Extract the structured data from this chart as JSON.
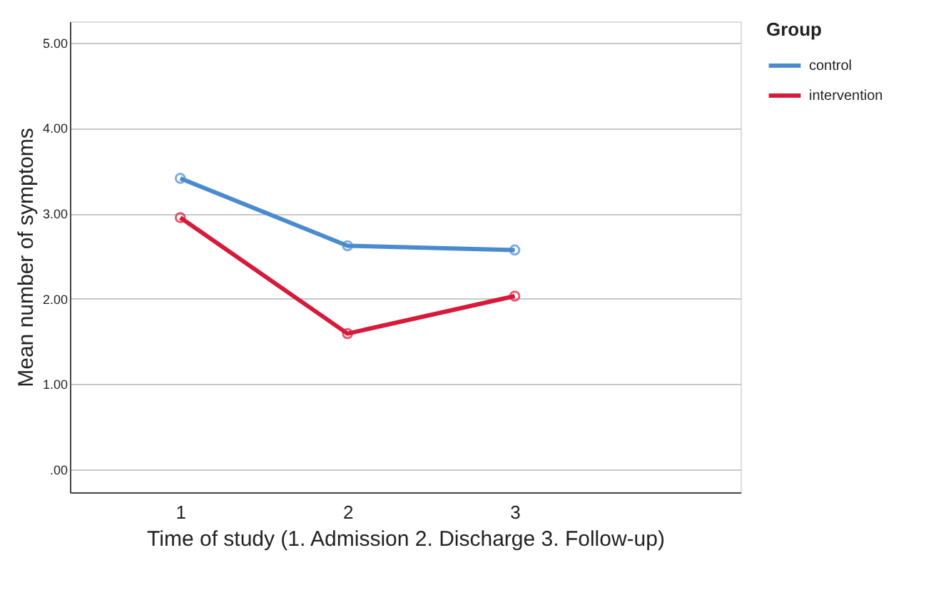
{
  "chart_data": {
    "type": "line",
    "xlabel": "Time of study (1. Admission 2. Discharge 3. Follow-up)",
    "ylabel": "Mean number of symptoms",
    "legend_title": "Group",
    "categories": [
      "1",
      "2",
      "3"
    ],
    "series": [
      {
        "name": "control",
        "color": "#4a8bd0",
        "values": [
          3.41,
          2.62,
          2.57
        ]
      },
      {
        "name": "intervention",
        "color": "#d7193a",
        "values": [
          2.95,
          1.59,
          2.03
        ]
      }
    ],
    "ylim": [
      -0.27,
      5.25
    ],
    "yticks": [
      {
        "value": 0,
        "label": ".00"
      },
      {
        "value": 1,
        "label": "1.00"
      },
      {
        "value": 2,
        "label": "2.00"
      },
      {
        "value": 3,
        "label": "3.00"
      },
      {
        "value": 4,
        "label": "4.00"
      },
      {
        "value": 5,
        "label": "5.00"
      }
    ],
    "grid": "y",
    "legend": "top right",
    "marker": "circle",
    "line_style": "solid"
  }
}
